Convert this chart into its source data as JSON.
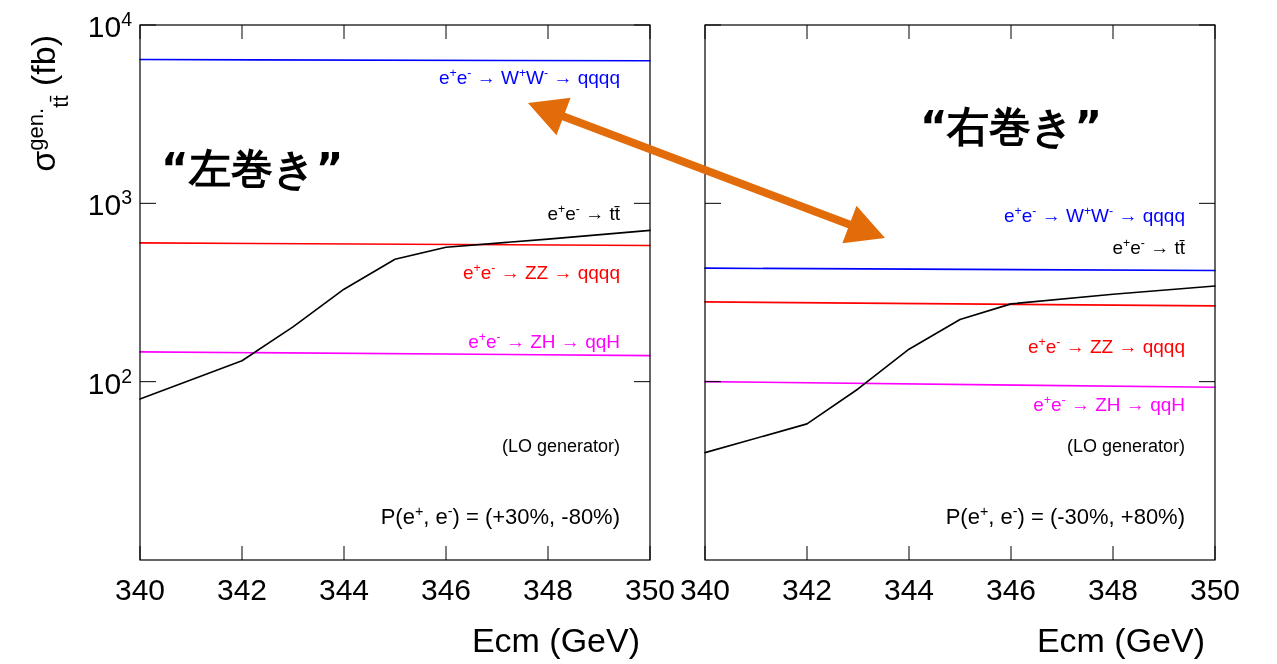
{
  "chart_data": [
    {
      "type": "line",
      "title": "“左巻き”",
      "xlabel": "Ecm (GeV)",
      "ylabel": "σ$^{gen.}$$_{tt̄}$ (fb)",
      "log": "y",
      "xlim": [
        340,
        350
      ],
      "xticks": [
        340,
        342,
        344,
        346,
        348,
        350
      ],
      "ylim": [
        10,
        10000
      ],
      "yticks": [
        {
          "value": 100,
          "label": "10$^{2}$"
        },
        {
          "value": 1000,
          "label": "10$^{3}$"
        },
        {
          "value": 10000,
          "label": "10$^{4}$"
        }
      ],
      "grid": false,
      "series": [
        {
          "name": "e$^{+}$e$^{-}$ → W$^{+}$W$^{-}$ → qqqq",
          "color": "#0000ff",
          "x": [
            340,
            350
          ],
          "values": [
            6400,
            6300
          ]
        },
        {
          "name": "e$^{+}$e$^{-}$ → ZZ → qqqq",
          "color": "#ff0000",
          "x": [
            340,
            350
          ],
          "values": [
            600,
            580
          ]
        },
        {
          "name": "e$^{+}$e$^{-}$ → ZH → qqH",
          "color": "#ff00ff",
          "x": [
            340,
            350
          ],
          "values": [
            147,
            140
          ]
        },
        {
          "name": "e$^{+}$e$^{-}$ → tt̄",
          "color": "#000000",
          "x": [
            340,
            342,
            343,
            344,
            345,
            346,
            348,
            350
          ],
          "values": [
            80,
            131,
            203,
            330,
            486,
            567,
            630,
            705
          ]
        }
      ],
      "annotations": [
        "(LO generator)",
        "P(e$^{+}$, e$^{-}$) = (+30%, -80%)"
      ]
    },
    {
      "type": "line",
      "title": "“右巻き”",
      "xlabel": "Ecm (GeV)",
      "log": "y",
      "xlim": [
        340,
        350
      ],
      "xticks": [
        340,
        342,
        344,
        346,
        348,
        350
      ],
      "ylim": [
        10,
        10000
      ],
      "yticks": [
        100,
        1000,
        10000
      ],
      "tick_labels": "x",
      "grid": false,
      "series": [
        {
          "name": "e$^{+}$e$^{-}$ → W$^{+}$W$^{-}$ → qqqq",
          "color": "#0000ff",
          "x": [
            340,
            350
          ],
          "values": [
            433,
            420
          ]
        },
        {
          "name": "e$^{+}$e$^{-}$ → ZZ → qqqq",
          "color": "#ff0000",
          "x": [
            340,
            350
          ],
          "values": [
            280,
            266
          ]
        },
        {
          "name": "e$^{+}$e$^{-}$ → ZH → qqH",
          "color": "#ff00ff",
          "x": [
            340,
            350
          ],
          "values": [
            100,
            93
          ]
        },
        {
          "name": "e$^{+}$e$^{-}$ → tt̄",
          "color": "#000000",
          "x": [
            340,
            342,
            343,
            344,
            345,
            346,
            348,
            350
          ],
          "values": [
            40,
            58,
            91,
            152,
            223,
            273,
            309,
            344
          ]
        }
      ],
      "annotations": [
        "(LO generator)",
        "P(e$^{+}$, e$^{-}$) = (-30%, +80%)"
      ]
    }
  ]
}
